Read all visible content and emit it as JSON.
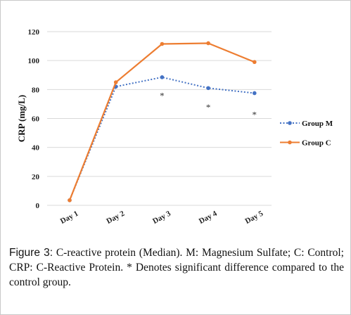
{
  "chart_data": {
    "type": "line",
    "title": "",
    "xlabel": "",
    "ylabel": "CRP (mg/L)",
    "ylim": [
      0,
      120
    ],
    "yticks": [
      0,
      20,
      40,
      60,
      80,
      100,
      120
    ],
    "grid": true,
    "legend_position": "right",
    "categories": [
      "Day 1",
      "Day 2",
      "Day 3",
      "Day 4",
      "Day 5"
    ],
    "series": [
      {
        "name": "Group M",
        "values": [
          3.5,
          82,
          88.5,
          81,
          77.5
        ],
        "color": "#4472C4",
        "style": "dotted"
      },
      {
        "name": "Group C",
        "values": [
          3.5,
          85,
          111.5,
          112,
          99
        ],
        "color": "#ED7D31",
        "style": "solid"
      }
    ],
    "annotations": [
      {
        "text": "*",
        "x": "Day 3",
        "y": 76
      },
      {
        "text": "*",
        "x": "Day 4",
        "y": 68
      },
      {
        "text": "*",
        "x": "Day 5",
        "y": 63
      }
    ]
  },
  "caption": {
    "label": "Figure 3:",
    "text": " C-reactive protein (Median). M: Magnesium Sulfate; C: Control; CRP: C-Reactive Protein. * Denotes significant difference compared to the control group."
  }
}
